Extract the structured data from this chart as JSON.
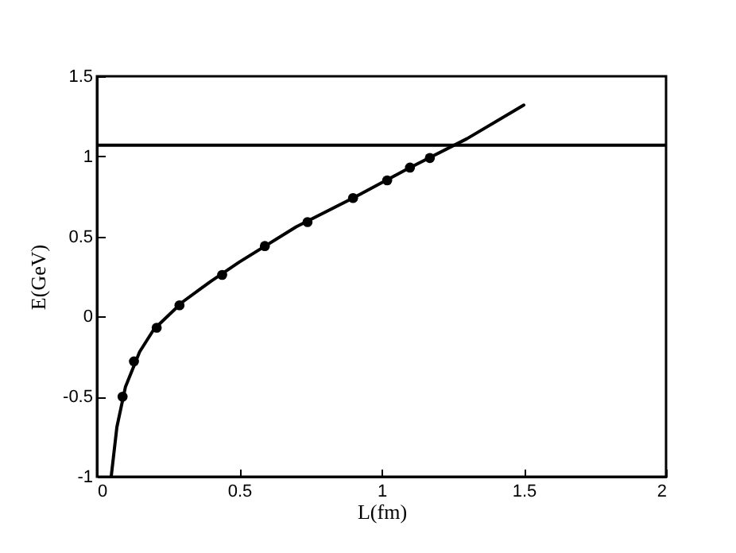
{
  "chart_data": {
    "type": "scatter",
    "xlabel": "L(fm)",
    "ylabel": "E(GeV)",
    "xlim": [
      0,
      2
    ],
    "ylim": [
      -1,
      1.5
    ],
    "xticks": [
      0,
      0.5,
      1,
      1.5,
      2
    ],
    "yticks": [
      -1,
      -0.5,
      0,
      0.5,
      1,
      1.5
    ],
    "grid": false,
    "series": [
      {
        "type": "line",
        "color": "#000000",
        "line_style": "solid",
        "x": [
          0.05,
          0.07,
          0.1,
          0.15,
          0.2,
          0.3,
          0.4,
          0.5,
          0.7,
          0.9,
          1.1,
          1.3,
          1.5
        ],
        "values": [
          -1.0,
          -0.69,
          -0.44,
          -0.22,
          -0.08,
          0.09,
          0.22,
          0.34,
          0.56,
          0.74,
          0.93,
          1.11,
          1.32
        ]
      },
      {
        "color": "#000000",
        "marker": "circle",
        "x": [
          0.09,
          0.13,
          0.21,
          0.29,
          0.44,
          0.59,
          0.74,
          0.9,
          1.02,
          1.1,
          1.17
        ],
        "values": [
          -0.5,
          -0.28,
          -0.07,
          0.07,
          0.26,
          0.44,
          0.59,
          0.74,
          0.85,
          0.93,
          0.99
        ]
      }
    ],
    "ref_lines": [
      {
        "axis": "y",
        "value": 1.07,
        "color": "#000000"
      }
    ]
  }
}
